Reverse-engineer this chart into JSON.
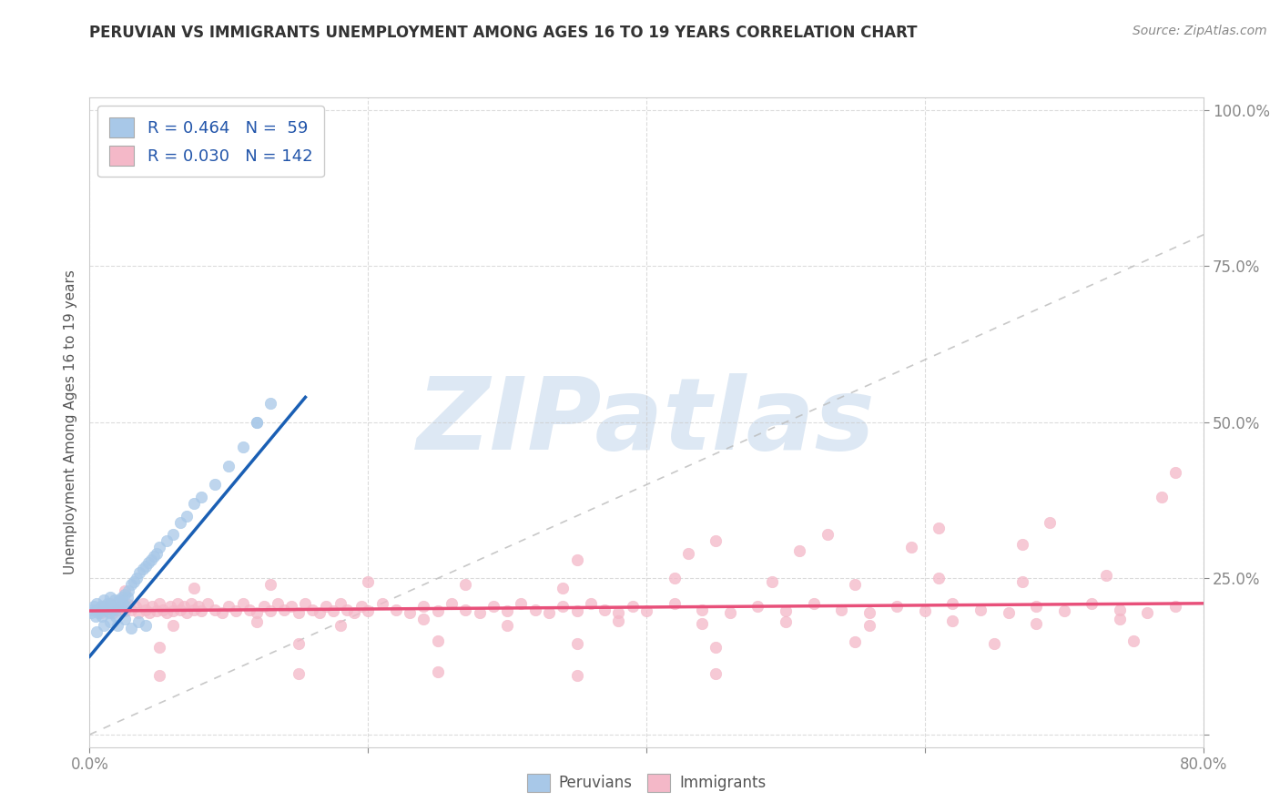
{
  "title": "PERUVIAN VS IMMIGRANTS UNEMPLOYMENT AMONG AGES 16 TO 19 YEARS CORRELATION CHART",
  "source": "Source: ZipAtlas.com",
  "ylabel": "Unemployment Among Ages 16 to 19 years",
  "xlim": [
    0.0,
    0.8
  ],
  "ylim": [
    -0.02,
    1.02
  ],
  "R_peruvian": 0.464,
  "N_peruvian": 59,
  "R_immigrant": 0.03,
  "N_immigrant": 142,
  "peruvian_color": "#a8c8e8",
  "immigrant_color": "#f4b8c8",
  "peruvian_line_color": "#1a5fb4",
  "immigrant_line_color": "#e8507a",
  "diagonal_color": "#bbbbbb",
  "background_color": "#ffffff",
  "watermark": "ZIPatlas",
  "watermark_color": "#dde8f4",
  "peruvian_scatter_x": [
    0.001,
    0.002,
    0.003,
    0.004,
    0.005,
    0.006,
    0.007,
    0.008,
    0.009,
    0.01,
    0.011,
    0.012,
    0.013,
    0.014,
    0.015,
    0.016,
    0.017,
    0.018,
    0.019,
    0.02,
    0.021,
    0.022,
    0.023,
    0.024,
    0.025,
    0.026,
    0.027,
    0.028,
    0.03,
    0.032,
    0.034,
    0.036,
    0.038,
    0.04,
    0.042,
    0.044,
    0.046,
    0.048,
    0.05,
    0.055,
    0.06,
    0.065,
    0.07,
    0.075,
    0.08,
    0.09,
    0.1,
    0.11,
    0.12,
    0.13,
    0.005,
    0.01,
    0.015,
    0.02,
    0.025,
    0.03,
    0.035,
    0.04,
    0.12
  ],
  "peruvian_scatter_y": [
    0.195,
    0.2,
    0.205,
    0.19,
    0.21,
    0.195,
    0.2,
    0.205,
    0.19,
    0.215,
    0.2,
    0.205,
    0.21,
    0.195,
    0.22,
    0.205,
    0.2,
    0.215,
    0.19,
    0.21,
    0.215,
    0.205,
    0.22,
    0.21,
    0.225,
    0.205,
    0.22,
    0.23,
    0.24,
    0.245,
    0.25,
    0.26,
    0.265,
    0.27,
    0.275,
    0.28,
    0.285,
    0.29,
    0.3,
    0.31,
    0.32,
    0.34,
    0.35,
    0.37,
    0.38,
    0.4,
    0.43,
    0.46,
    0.5,
    0.53,
    0.165,
    0.175,
    0.18,
    0.175,
    0.185,
    0.17,
    0.18,
    0.175,
    0.5
  ],
  "immigrant_scatter_x": [
    0.005,
    0.008,
    0.01,
    0.012,
    0.015,
    0.017,
    0.02,
    0.022,
    0.025,
    0.028,
    0.03,
    0.033,
    0.035,
    0.038,
    0.04,
    0.043,
    0.045,
    0.048,
    0.05,
    0.053,
    0.055,
    0.058,
    0.06,
    0.063,
    0.065,
    0.068,
    0.07,
    0.073,
    0.075,
    0.078,
    0.08,
    0.085,
    0.09,
    0.095,
    0.1,
    0.105,
    0.11,
    0.115,
    0.12,
    0.125,
    0.13,
    0.135,
    0.14,
    0.145,
    0.15,
    0.155,
    0.16,
    0.165,
    0.17,
    0.175,
    0.18,
    0.185,
    0.19,
    0.195,
    0.2,
    0.21,
    0.22,
    0.23,
    0.24,
    0.25,
    0.26,
    0.27,
    0.28,
    0.29,
    0.3,
    0.31,
    0.32,
    0.33,
    0.34,
    0.35,
    0.36,
    0.37,
    0.38,
    0.39,
    0.4,
    0.42,
    0.44,
    0.46,
    0.48,
    0.5,
    0.52,
    0.54,
    0.56,
    0.58,
    0.6,
    0.62,
    0.64,
    0.66,
    0.68,
    0.7,
    0.72,
    0.74,
    0.76,
    0.78,
    0.06,
    0.12,
    0.18,
    0.24,
    0.3,
    0.38,
    0.44,
    0.5,
    0.56,
    0.62,
    0.68,
    0.74,
    0.025,
    0.075,
    0.13,
    0.2,
    0.27,
    0.34,
    0.42,
    0.49,
    0.55,
    0.61,
    0.67,
    0.73,
    0.45,
    0.53,
    0.61,
    0.69,
    0.35,
    0.43,
    0.51,
    0.59,
    0.67,
    0.05,
    0.15,
    0.25,
    0.35,
    0.45,
    0.55,
    0.65,
    0.75,
    0.77,
    0.78,
    0.05,
    0.15,
    0.25,
    0.35,
    0.45
  ],
  "immigrant_scatter_y": [
    0.2,
    0.195,
    0.205,
    0.198,
    0.21,
    0.195,
    0.2,
    0.205,
    0.198,
    0.208,
    0.2,
    0.205,
    0.195,
    0.21,
    0.2,
    0.195,
    0.205,
    0.198,
    0.21,
    0.2,
    0.195,
    0.205,
    0.198,
    0.21,
    0.2,
    0.205,
    0.195,
    0.21,
    0.2,
    0.205,
    0.198,
    0.21,
    0.2,
    0.195,
    0.205,
    0.198,
    0.21,
    0.2,
    0.195,
    0.205,
    0.198,
    0.21,
    0.2,
    0.205,
    0.195,
    0.21,
    0.2,
    0.195,
    0.205,
    0.198,
    0.21,
    0.2,
    0.195,
    0.205,
    0.198,
    0.21,
    0.2,
    0.195,
    0.205,
    0.198,
    0.21,
    0.2,
    0.195,
    0.205,
    0.198,
    0.21,
    0.2,
    0.195,
    0.205,
    0.198,
    0.21,
    0.2,
    0.195,
    0.205,
    0.198,
    0.21,
    0.2,
    0.195,
    0.205,
    0.198,
    0.21,
    0.2,
    0.195,
    0.205,
    0.198,
    0.21,
    0.2,
    0.195,
    0.205,
    0.198,
    0.21,
    0.2,
    0.195,
    0.205,
    0.175,
    0.18,
    0.175,
    0.185,
    0.175,
    0.182,
    0.178,
    0.18,
    0.175,
    0.182,
    0.178,
    0.185,
    0.23,
    0.235,
    0.24,
    0.245,
    0.24,
    0.235,
    0.25,
    0.245,
    0.24,
    0.25,
    0.245,
    0.255,
    0.31,
    0.32,
    0.33,
    0.34,
    0.28,
    0.29,
    0.295,
    0.3,
    0.305,
    0.14,
    0.145,
    0.15,
    0.145,
    0.14,
    0.148,
    0.145,
    0.15,
    0.38,
    0.42,
    0.095,
    0.098,
    0.1,
    0.095,
    0.098
  ],
  "peruvian_line_x": [
    0.0,
    0.155
  ],
  "peruvian_line_y": [
    0.125,
    0.54
  ],
  "immigrant_line_x": [
    0.0,
    0.8
  ],
  "immigrant_line_y": [
    0.198,
    0.21
  ]
}
